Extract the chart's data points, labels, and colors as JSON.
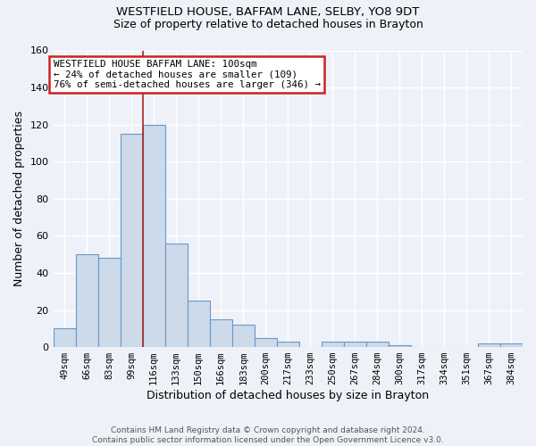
{
  "title1": "WESTFIELD HOUSE, BAFFAM LANE, SELBY, YO8 9DT",
  "title2": "Size of property relative to detached houses in Brayton",
  "xlabel": "Distribution of detached houses by size in Brayton",
  "ylabel": "Number of detached properties",
  "footer1": "Contains HM Land Registry data © Crown copyright and database right 2024.",
  "footer2": "Contains public sector information licensed under the Open Government Licence v3.0.",
  "bar_labels": [
    "49sqm",
    "66sqm",
    "83sqm",
    "99sqm",
    "116sqm",
    "133sqm",
    "150sqm",
    "166sqm",
    "183sqm",
    "200sqm",
    "217sqm",
    "233sqm",
    "250sqm",
    "267sqm",
    "284sqm",
    "300sqm",
    "317sqm",
    "334sqm",
    "351sqm",
    "367sqm",
    "384sqm"
  ],
  "bar_values": [
    10,
    50,
    48,
    115,
    120,
    56,
    25,
    15,
    12,
    5,
    3,
    0,
    3,
    3,
    3,
    1,
    0,
    0,
    0,
    2,
    2
  ],
  "bar_color": "#cddaea",
  "bar_edge_color": "#6699cc",
  "bg_color": "#eef2f8",
  "plot_bg_color": "#eef2f8",
  "grid_color": "#ffffff",
  "vline_color": "#aa2222",
  "annotation_text": "WESTFIELD HOUSE BAFFAM LANE: 100sqm\n← 24% of detached houses are smaller (109)\n76% of semi-detached houses are larger (346) →",
  "annotation_box_color": "#ffffff",
  "annotation_box_edge": "#cc2222",
  "ylim": [
    0,
    160
  ],
  "yticks": [
    0,
    20,
    40,
    60,
    80,
    100,
    120,
    140,
    160
  ],
  "vline_idx": 3.5
}
